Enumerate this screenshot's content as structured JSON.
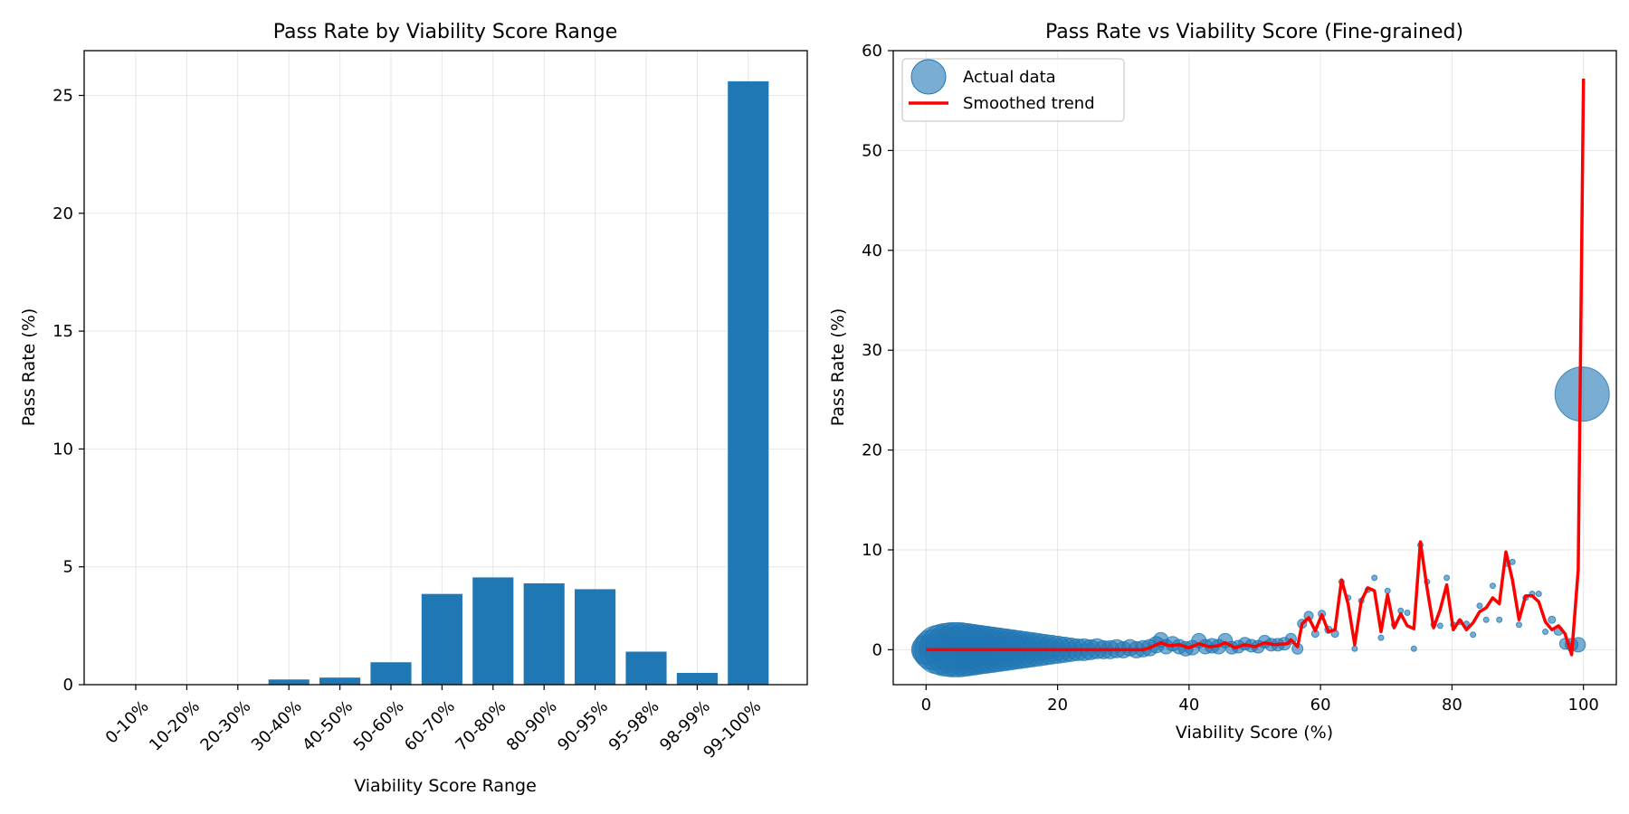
{
  "chart_data": [
    {
      "type": "bar",
      "title": "Pass Rate by Viability Score Range",
      "xlabel": "Viability Score Range",
      "ylabel": "Pass Rate (%)",
      "ylim": [
        0,
        26.9
      ],
      "yticks": [
        0,
        5,
        10,
        15,
        20,
        25
      ],
      "grid": true,
      "color": "#1f77b4",
      "categories": [
        "0-10%",
        "10-20%",
        "20-30%",
        "30-40%",
        "40-50%",
        "50-60%",
        "60-70%",
        "70-80%",
        "80-90%",
        "90-95%",
        "95-98%",
        "98-99%",
        "99-100%"
      ],
      "values": [
        0.0,
        0.0,
        0.0,
        0.22,
        0.3,
        0.95,
        3.85,
        4.55,
        4.3,
        4.05,
        1.4,
        0.5,
        25.6
      ]
    },
    {
      "type": "scatter",
      "title": "Pass Rate vs Viability Score (Fine-grained)",
      "xlabel": "Viability Score (%)",
      "ylabel": "Pass Rate (%)",
      "xlim": [
        -5,
        105
      ],
      "ylim": [
        -3.5,
        60
      ],
      "xticks": [
        0,
        20,
        40,
        60,
        80,
        100
      ],
      "yticks": [
        0,
        10,
        20,
        30,
        40,
        50,
        60
      ],
      "grid": true,
      "legend_position": "top-left",
      "series": [
        {
          "name": "Actual data",
          "kind": "scatter",
          "color": "#1f77b4",
          "points": [
            {
              "x": 0,
              "y": 0,
              "s": 16
            },
            {
              "x": 1,
              "y": 0,
              "s": 22
            },
            {
              "x": 2,
              "y": 0,
              "s": 27
            },
            {
              "x": 3,
              "y": 0,
              "s": 29
            },
            {
              "x": 4,
              "y": 0,
              "s": 30
            },
            {
              "x": 5,
              "y": 0,
              "s": 30
            },
            {
              "x": 6,
              "y": 0,
              "s": 29
            },
            {
              "x": 7,
              "y": 0,
              "s": 28
            },
            {
              "x": 8,
              "y": 0,
              "s": 27
            },
            {
              "x": 9,
              "y": 0,
              "s": 26
            },
            {
              "x": 10,
              "y": 0,
              "s": 25
            },
            {
              "x": 11,
              "y": 0,
              "s": 24
            },
            {
              "x": 12,
              "y": 0,
              "s": 23
            },
            {
              "x": 13,
              "y": 0,
              "s": 22
            },
            {
              "x": 14,
              "y": 0,
              "s": 21
            },
            {
              "x": 15,
              "y": 0,
              "s": 20
            },
            {
              "x": 16,
              "y": 0,
              "s": 19
            },
            {
              "x": 17,
              "y": 0,
              "s": 18
            },
            {
              "x": 18,
              "y": 0,
              "s": 17
            },
            {
              "x": 19,
              "y": 0,
              "s": 16
            },
            {
              "x": 20,
              "y": 0,
              "s": 15
            },
            {
              "x": 21,
              "y": 0,
              "s": 14
            },
            {
              "x": 22,
              "y": 0,
              "s": 13
            },
            {
              "x": 23,
              "y": 0,
              "s": 12
            },
            {
              "x": 24,
              "y": 0,
              "s": 12
            },
            {
              "x": 25,
              "y": 0,
              "s": 11
            },
            {
              "x": 26,
              "y": 0.1,
              "s": 11
            },
            {
              "x": 27,
              "y": 0,
              "s": 10
            },
            {
              "x": 28,
              "y": 0,
              "s": 10
            },
            {
              "x": 29,
              "y": 0.1,
              "s": 10
            },
            {
              "x": 30,
              "y": 0,
              "s": 9
            },
            {
              "x": 31,
              "y": 0.2,
              "s": 9
            },
            {
              "x": 32,
              "y": 0,
              "s": 9
            },
            {
              "x": 33,
              "y": 0.1,
              "s": 9
            },
            {
              "x": 34,
              "y": 0.2,
              "s": 9
            },
            {
              "x": 35,
              "y": 0.5,
              "s": 9
            },
            {
              "x": 35.7,
              "y": 1.0,
              "s": 8
            },
            {
              "x": 36.5,
              "y": 0.3,
              "s": 8
            },
            {
              "x": 37.5,
              "y": 0.6,
              "s": 8
            },
            {
              "x": 38.5,
              "y": 0.3,
              "s": 8
            },
            {
              "x": 39.5,
              "y": 0.1,
              "s": 8
            },
            {
              "x": 40.5,
              "y": 0.2,
              "s": 8
            },
            {
              "x": 41.5,
              "y": 0.9,
              "s": 8
            },
            {
              "x": 42.5,
              "y": 0.3,
              "s": 8
            },
            {
              "x": 43.5,
              "y": 0.4,
              "s": 8
            },
            {
              "x": 44.5,
              "y": 0.3,
              "s": 8
            },
            {
              "x": 45.5,
              "y": 0.9,
              "s": 8
            },
            {
              "x": 46.5,
              "y": 0.2,
              "s": 7
            },
            {
              "x": 47.5,
              "y": 0.3,
              "s": 7
            },
            {
              "x": 48.5,
              "y": 0.6,
              "s": 7
            },
            {
              "x": 49.5,
              "y": 0.4,
              "s": 7
            },
            {
              "x": 50.5,
              "y": 0.3,
              "s": 7
            },
            {
              "x": 51.5,
              "y": 0.8,
              "s": 7
            },
            {
              "x": 52.5,
              "y": 0.5,
              "s": 7
            },
            {
              "x": 53.5,
              "y": 0.5,
              "s": 7
            },
            {
              "x": 54.5,
              "y": 0.6,
              "s": 7
            },
            {
              "x": 55.5,
              "y": 1.1,
              "s": 6
            },
            {
              "x": 56.5,
              "y": 0.1,
              "s": 6
            },
            {
              "x": 57.2,
              "y": 2.6,
              "s": 5
            },
            {
              "x": 58.2,
              "y": 3.4,
              "s": 5
            },
            {
              "x": 59.2,
              "y": 1.6,
              "s": 4
            },
            {
              "x": 60.2,
              "y": 3.6,
              "s": 4
            },
            {
              "x": 61.2,
              "y": 2.0,
              "s": 4
            },
            {
              "x": 62.2,
              "y": 1.6,
              "s": 4
            },
            {
              "x": 63.2,
              "y": 6.8,
              "s": 3
            },
            {
              "x": 64.2,
              "y": 5.2,
              "s": 3
            },
            {
              "x": 65.2,
              "y": 0.1,
              "s": 3
            },
            {
              "x": 66.2,
              "y": 4.9,
              "s": 3
            },
            {
              "x": 67.2,
              "y": 6.0,
              "s": 3
            },
            {
              "x": 68.2,
              "y": 7.2,
              "s": 3
            },
            {
              "x": 69.2,
              "y": 1.2,
              "s": 3
            },
            {
              "x": 70.2,
              "y": 5.9,
              "s": 3
            },
            {
              "x": 71.2,
              "y": 2.5,
              "s": 3
            },
            {
              "x": 72.2,
              "y": 3.9,
              "s": 3
            },
            {
              "x": 73.2,
              "y": 3.7,
              "s": 3
            },
            {
              "x": 74.2,
              "y": 0.1,
              "s": 3
            },
            {
              "x": 75.2,
              "y": 10.5,
              "s": 3
            },
            {
              "x": 76.2,
              "y": 6.8,
              "s": 3
            },
            {
              "x": 77.2,
              "y": 2.5,
              "s": 3
            },
            {
              "x": 78.2,
              "y": 2.4,
              "s": 3
            },
            {
              "x": 79.2,
              "y": 7.2,
              "s": 3
            },
            {
              "x": 80.2,
              "y": 2.5,
              "s": 3
            },
            {
              "x": 81.2,
              "y": 2.8,
              "s": 3
            },
            {
              "x": 82.2,
              "y": 2.6,
              "s": 3
            },
            {
              "x": 83.2,
              "y": 1.5,
              "s": 3
            },
            {
              "x": 84.2,
              "y": 4.4,
              "s": 3
            },
            {
              "x": 85.2,
              "y": 3.0,
              "s": 3
            },
            {
              "x": 86.2,
              "y": 6.4,
              "s": 3
            },
            {
              "x": 87.2,
              "y": 3.0,
              "s": 3
            },
            {
              "x": 88.2,
              "y": 8.6,
              "s": 3
            },
            {
              "x": 89.2,
              "y": 8.8,
              "s": 3
            },
            {
              "x": 90.2,
              "y": 2.5,
              "s": 3
            },
            {
              "x": 91.2,
              "y": 5.2,
              "s": 3
            },
            {
              "x": 92.2,
              "y": 5.6,
              "s": 3
            },
            {
              "x": 93.2,
              "y": 5.6,
              "s": 3
            },
            {
              "x": 94.2,
              "y": 1.8,
              "s": 3
            },
            {
              "x": 95.2,
              "y": 3.0,
              "s": 4
            },
            {
              "x": 96.2,
              "y": 1.9,
              "s": 5
            },
            {
              "x": 97.2,
              "y": 0.6,
              "s": 6
            },
            {
              "x": 98.2,
              "y": 0.5,
              "s": 7
            },
            {
              "x": 99.2,
              "y": 0.5,
              "s": 8
            },
            {
              "x": 99.8,
              "y": 25.6,
              "s": 30
            }
          ]
        },
        {
          "name": "Smoothed trend",
          "kind": "line",
          "color": "#ff0000",
          "points": [
            {
              "x": 0,
              "y": 0
            },
            {
              "x": 33,
              "y": 0
            },
            {
              "x": 34,
              "y": 0.2
            },
            {
              "x": 35.7,
              "y": 0.7
            },
            {
              "x": 37,
              "y": 0.4
            },
            {
              "x": 38.5,
              "y": 0.5
            },
            {
              "x": 40,
              "y": 0.2
            },
            {
              "x": 41.5,
              "y": 0.6
            },
            {
              "x": 43,
              "y": 0.3
            },
            {
              "x": 44.5,
              "y": 0.4
            },
            {
              "x": 45.5,
              "y": 0.7
            },
            {
              "x": 47,
              "y": 0.2
            },
            {
              "x": 48.5,
              "y": 0.5
            },
            {
              "x": 50,
              "y": 0.3
            },
            {
              "x": 51.5,
              "y": 0.7
            },
            {
              "x": 53,
              "y": 0.5
            },
            {
              "x": 55,
              "y": 0.6
            },
            {
              "x": 55.5,
              "y": 1.0
            },
            {
              "x": 56.5,
              "y": 0.3
            },
            {
              "x": 57.2,
              "y": 2.6
            },
            {
              "x": 58.2,
              "y": 3.2
            },
            {
              "x": 59.2,
              "y": 1.9
            },
            {
              "x": 60.2,
              "y": 3.5
            },
            {
              "x": 61.2,
              "y": 1.8
            },
            {
              "x": 62.2,
              "y": 2.0
            },
            {
              "x": 63.2,
              "y": 7.0
            },
            {
              "x": 64.2,
              "y": 4.6
            },
            {
              "x": 65.2,
              "y": 0.5
            },
            {
              "x": 66.2,
              "y": 4.9
            },
            {
              "x": 67.2,
              "y": 6.2
            },
            {
              "x": 68.2,
              "y": 5.9
            },
            {
              "x": 69.2,
              "y": 1.8
            },
            {
              "x": 70.2,
              "y": 5.5
            },
            {
              "x": 71.2,
              "y": 2.2
            },
            {
              "x": 72.2,
              "y": 3.6
            },
            {
              "x": 73.2,
              "y": 2.4
            },
            {
              "x": 74.2,
              "y": 2.1
            },
            {
              "x": 75.2,
              "y": 10.8
            },
            {
              "x": 76.2,
              "y": 6.2
            },
            {
              "x": 77.2,
              "y": 2.2
            },
            {
              "x": 78.2,
              "y": 4.0
            },
            {
              "x": 79.2,
              "y": 6.5
            },
            {
              "x": 80.2,
              "y": 2.0
            },
            {
              "x": 81.2,
              "y": 3.0
            },
            {
              "x": 82.2,
              "y": 2.0
            },
            {
              "x": 83.2,
              "y": 2.7
            },
            {
              "x": 84.2,
              "y": 3.8
            },
            {
              "x": 85.2,
              "y": 4.2
            },
            {
              "x": 86.2,
              "y": 5.2
            },
            {
              "x": 87.2,
              "y": 4.6
            },
            {
              "x": 88.2,
              "y": 9.8
            },
            {
              "x": 89.2,
              "y": 7.0
            },
            {
              "x": 90.2,
              "y": 3.0
            },
            {
              "x": 91.2,
              "y": 5.4
            },
            {
              "x": 92.2,
              "y": 5.4
            },
            {
              "x": 93.2,
              "y": 4.8
            },
            {
              "x": 94.2,
              "y": 2.8
            },
            {
              "x": 95.2,
              "y": 2.0
            },
            {
              "x": 96.2,
              "y": 2.4
            },
            {
              "x": 97.2,
              "y": 1.6
            },
            {
              "x": 98.2,
              "y": -0.5
            },
            {
              "x": 99.2,
              "y": 8.0
            },
            {
              "x": 100,
              "y": 57.2
            }
          ]
        }
      ]
    }
  ]
}
